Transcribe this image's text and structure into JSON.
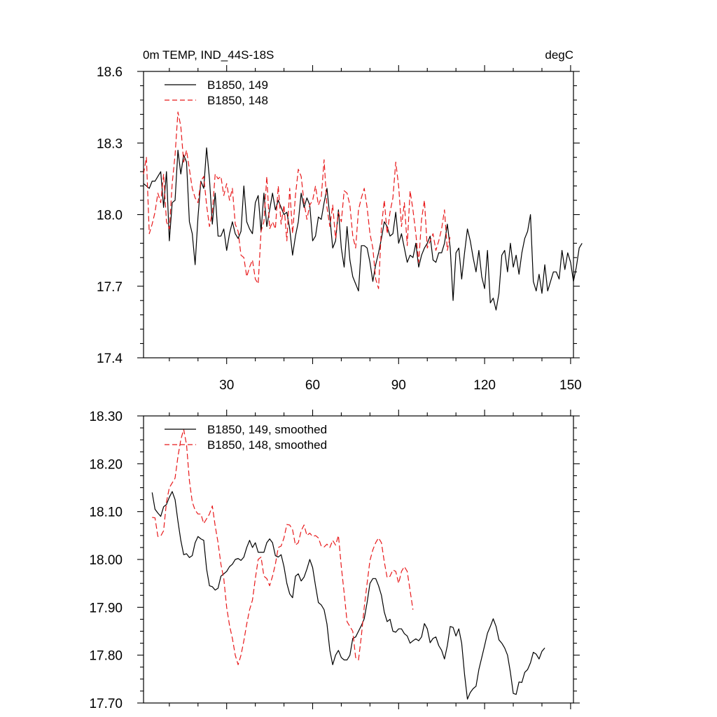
{
  "chart_data": [
    {
      "type": "line",
      "title": "0m TEMP, IND_44S-18S",
      "units": "degC",
      "xlim": [
        1,
        151
      ],
      "ylim": [
        17.4,
        18.6
      ],
      "x_ticks": [
        30,
        60,
        90,
        120,
        150
      ],
      "x_tick_labels": [
        "30",
        "60",
        "90",
        "120",
        "150"
      ],
      "y_ticks": [
        17.4,
        17.7,
        18.0,
        18.3,
        18.6
      ],
      "y_tick_labels": [
        "17.4",
        "17.7",
        "18.0",
        "18.3",
        "18.6"
      ],
      "legend_position": "top-left",
      "series": [
        {
          "name": "B1850, 149",
          "color": "#000000",
          "dash": "solid",
          "x_start": 1,
          "values": [
            18.13,
            18.12,
            18.11,
            18.14,
            18.14,
            18.16,
            18.18,
            18.03,
            18.18,
            17.89,
            18.05,
            18.06,
            18.27,
            18.17,
            18.25,
            18.22,
            17.97,
            17.92,
            17.79,
            17.99,
            18.14,
            18.11,
            18.28,
            18.15,
            17.96,
            18.09,
            17.91,
            17.91,
            17.94,
            17.85,
            17.92,
            17.97,
            17.92,
            17.9,
            17.93,
            18.12,
            17.97,
            17.94,
            17.92,
            18.05,
            18.08,
            17.93,
            18.09,
            17.95,
            18.02,
            18.09,
            18.02,
            18.06,
            18.03,
            18.0,
            18.01,
            17.94,
            17.83,
            17.91,
            17.97,
            18.09,
            18.03,
            18.07,
            18.04,
            17.89,
            17.91,
            17.99,
            17.98,
            18.05,
            18.11,
            17.99,
            17.86,
            17.89,
            18.02,
            17.86,
            17.78,
            17.95,
            17.81,
            17.74,
            17.71,
            17.68,
            17.87,
            17.87,
            17.86,
            17.8,
            17.72,
            17.79,
            17.84,
            17.9,
            17.97,
            17.95,
            17.91,
            17.92,
            18.01,
            17.88,
            17.92,
            17.86,
            17.8,
            17.83,
            17.82,
            17.88,
            17.78,
            17.83,
            17.86,
            17.88,
            17.91,
            17.81,
            17.8,
            17.84,
            17.84,
            17.88,
            17.96,
            17.86,
            17.64,
            17.84,
            17.86,
            17.73,
            17.84,
            17.94,
            17.89,
            17.82,
            17.76,
            17.85,
            17.74,
            17.69,
            17.85,
            17.63,
            17.65,
            17.6,
            17.67,
            17.83,
            17.85,
            17.76,
            17.88,
            17.78,
            17.83,
            17.75,
            17.84,
            17.9,
            17.93,
            18.0,
            17.72,
            17.68,
            17.75,
            17.67,
            17.79,
            17.68,
            17.72,
            17.76,
            17.76,
            17.73,
            17.85,
            17.77,
            17.84,
            17.8,
            17.72,
            17.78,
            17.86,
            17.88
          ]
        },
        {
          "name": "B1850, 148",
          "color": "#e8191b",
          "dash": "dashed",
          "x_start": 1,
          "values": [
            18.17,
            18.24,
            17.92,
            17.96,
            18.01,
            18.09,
            18.05,
            18.17,
            17.97,
            17.94,
            18.13,
            18.25,
            18.43,
            18.37,
            18.22,
            18.27,
            18.19,
            18.11,
            18.07,
            18.05,
            18.14,
            18.16,
            18.04,
            17.95,
            18.01,
            18.17,
            18.15,
            18.16,
            18.08,
            18.13,
            18.06,
            18.11,
            17.96,
            17.93,
            17.83,
            17.82,
            17.74,
            17.78,
            17.81,
            17.73,
            17.71,
            17.93,
            17.97,
            18.16,
            17.94,
            17.97,
            17.94,
            18.12,
            17.96,
            18.04,
            17.89,
            18.11,
            17.92,
            18.08,
            18.19,
            18.16,
            18.05,
            17.98,
            18.04,
            18.06,
            18.12,
            18.04,
            18.07,
            18.23,
            18.03,
            17.95,
            18.04,
            17.9,
            18.01,
            17.97,
            18.1,
            18.09,
            18.04,
            17.91,
            17.86,
            18.02,
            18.07,
            18.11,
            18.03,
            17.92,
            17.86,
            17.73,
            17.69,
            17.95,
            18.06,
            17.92,
            18.01,
            18.07,
            18.22,
            18.12,
            17.95,
            18.05,
            17.87,
            18.1,
            18.02,
            17.92,
            17.8,
            17.98,
            18.06,
            17.86,
            17.89,
            17.92,
            17.85,
            17.89,
            17.94,
            18.02,
            17.85,
            17.91
          ]
        }
      ]
    },
    {
      "type": "line",
      "xlim": [
        1,
        151
      ],
      "ylim": [
        17.7,
        18.3
      ],
      "x_ticks": [
        30,
        60,
        90,
        120,
        150
      ],
      "y_ticks": [
        17.7,
        17.8,
        17.9,
        18.0,
        18.1,
        18.2,
        18.3
      ],
      "y_tick_labels": [
        "17.70",
        "17.80",
        "17.90",
        "18.00",
        "18.10",
        "18.20",
        "18.30"
      ],
      "legend_position": "top-left",
      "series": [
        {
          "name": "B1850, 149, smoothed",
          "color": "#000000",
          "dash": "solid",
          "x_start": 4,
          "values": [
            18.14,
            18.105,
            18.097,
            18.09,
            18.11,
            18.115,
            18.13,
            18.142,
            18.125,
            18.08,
            18.04,
            18.01,
            18.012,
            18.004,
            18.008,
            18.035,
            18.048,
            18.043,
            18.04,
            17.98,
            17.945,
            17.943,
            17.936,
            17.94,
            17.965,
            17.97,
            17.975,
            17.985,
            17.99,
            18.0,
            18.002,
            17.998,
            18.005,
            18.025,
            18.04,
            18.025,
            18.035,
            18.015,
            18.015,
            18.015,
            18.035,
            18.043,
            18.035,
            18.008,
            18.005,
            18.01,
            17.985,
            17.95,
            17.928,
            17.92,
            17.965,
            17.97,
            17.955,
            17.963,
            17.98,
            18.0,
            17.983,
            17.945,
            17.91,
            17.905,
            17.895,
            17.865,
            17.81,
            17.78,
            17.8,
            17.81,
            17.795,
            17.79,
            17.79,
            17.8,
            17.835,
            17.838,
            17.85,
            17.862,
            17.876,
            17.91,
            17.95,
            17.96,
            17.96,
            17.945,
            17.925,
            17.89,
            17.87,
            17.875,
            17.85,
            17.848,
            17.855,
            17.855,
            17.845,
            17.84,
            17.825,
            17.83,
            17.834,
            17.83,
            17.838,
            17.866,
            17.855,
            17.826,
            17.835,
            17.838,
            17.82,
            17.81,
            17.792,
            17.82,
            17.86,
            17.858,
            17.84,
            17.855,
            17.825,
            17.76,
            17.708,
            17.722,
            17.73,
            17.735,
            17.77,
            17.795,
            17.82,
            17.846,
            17.86,
            17.876,
            17.86,
            17.832,
            17.825,
            17.815,
            17.8,
            17.764,
            17.72,
            17.718,
            17.744,
            17.743,
            17.764,
            17.77,
            17.784,
            17.806,
            17.802,
            17.792,
            17.808,
            17.815
          ]
        },
        {
          "name": "B1850, 148, smoothed",
          "color": "#e8191b",
          "dash": "dashed",
          "x_start": 4,
          "values": [
            18.088,
            18.087,
            18.048,
            18.049,
            18.06,
            18.12,
            18.15,
            18.16,
            18.17,
            18.215,
            18.25,
            18.272,
            18.24,
            18.165,
            18.12,
            18.103,
            18.095,
            18.095,
            18.075,
            18.085,
            18.095,
            18.112,
            18.07,
            18.035,
            17.99,
            17.96,
            17.9,
            17.862,
            17.835,
            17.8,
            17.78,
            17.8,
            17.83,
            17.865,
            17.895,
            17.915,
            17.96,
            18.0,
            18.005,
            17.965,
            17.96,
            17.945,
            17.965,
            17.99,
            18.025,
            18.028,
            18.045,
            18.073,
            18.072,
            18.062,
            18.03,
            18.035,
            18.06,
            18.072,
            18.05,
            18.055,
            18.048,
            18.05,
            18.045,
            18.028,
            18.026,
            18.032,
            18.025,
            18.04,
            18.03,
            18.05,
            17.985,
            17.93,
            17.87,
            17.86,
            17.85,
            17.795,
            17.79,
            17.84,
            17.9,
            17.95,
            17.998,
            18.02,
            18.035,
            18.045,
            18.035,
            17.995,
            17.962,
            17.965,
            17.978,
            17.975,
            17.95,
            17.975,
            17.985,
            17.975,
            17.935,
            17.895
          ]
        }
      ]
    }
  ]
}
